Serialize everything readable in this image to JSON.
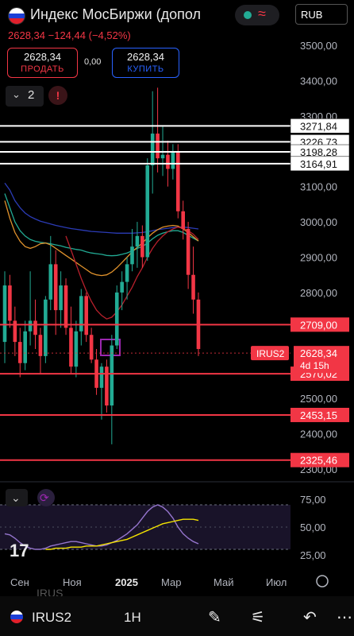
{
  "header": {
    "title": "Индекс МосБиржи (допол",
    "currency": "RUB",
    "last_price": "2628,34",
    "change": "−124,44",
    "change_pct": "(−4,52%)",
    "sell_price": "2628,34",
    "sell_label": "ПРОДАТЬ",
    "buy_price": "2628,34",
    "buy_label": "КУПИТЬ",
    "spread": "0,00",
    "indicator_count": "2",
    "warning_icon": "!"
  },
  "colors": {
    "up": "#22ab94",
    "down": "#f23645",
    "accent": "#2962ff",
    "background": "#000000"
  },
  "chart_data": {
    "type": "candlestick",
    "symbol": "IRUS2",
    "timeframe": "1H",
    "y_ticks": [
      "3500,00",
      "3400,00",
      "3300,00",
      "3100,00",
      "3000,00",
      "2900,00",
      "2800,00",
      "2500,00",
      "2400,00",
      "2300,00"
    ],
    "x_ticks": [
      "Сен",
      "Ноя",
      "2025",
      "Мар",
      "Май",
      "Июл"
    ],
    "ylim": [
      2300,
      3550
    ],
    "candles": [
      [
        2660,
        2860,
        2600,
        2820
      ],
      [
        2820,
        2850,
        2700,
        2720
      ],
      [
        2720,
        2760,
        2620,
        2660
      ],
      [
        2660,
        2700,
        2560,
        2600
      ],
      [
        2600,
        2720,
        2580,
        2690
      ],
      [
        2690,
        2860,
        2650,
        2720
      ],
      [
        2720,
        2780,
        2640,
        2680
      ],
      [
        2680,
        2700,
        2570,
        2620
      ],
      [
        2620,
        2790,
        2600,
        2780
      ],
      [
        2780,
        2960,
        2750,
        2880
      ],
      [
        2880,
        2920,
        2680,
        2750
      ],
      [
        2750,
        2860,
        2700,
        2820
      ],
      [
        2820,
        2840,
        2680,
        2700
      ],
      [
        2700,
        2760,
        2570,
        2590
      ],
      [
        2590,
        2720,
        2560,
        2690
      ],
      [
        2690,
        2810,
        2650,
        2790
      ],
      [
        2790,
        2800,
        2660,
        2680
      ],
      [
        2680,
        2700,
        2600,
        2610
      ],
      [
        2610,
        2640,
        2510,
        2530
      ],
      [
        2530,
        2600,
        2440,
        2590
      ],
      [
        2590,
        2610,
        2460,
        2480
      ],
      [
        2480,
        2680,
        2370,
        2650
      ],
      [
        2650,
        2820,
        2640,
        2800
      ],
      [
        2800,
        2860,
        2750,
        2830
      ],
      [
        2830,
        2900,
        2780,
        2880
      ],
      [
        2880,
        2980,
        2860,
        2930
      ],
      [
        2930,
        3000,
        2870,
        2960
      ],
      [
        2960,
        2990,
        2870,
        2900
      ],
      [
        2900,
        3180,
        2890,
        3160
      ],
      [
        3160,
        3370,
        3080,
        3250
      ],
      [
        3250,
        3380,
        3140,
        3180
      ],
      [
        3180,
        3270,
        3130,
        3190
      ],
      [
        3190,
        3230,
        3100,
        3150
      ],
      [
        3150,
        3220,
        3120,
        3200
      ],
      [
        3200,
        3220,
        3010,
        3030
      ],
      [
        3030,
        3060,
        2950,
        2980
      ],
      [
        2980,
        3000,
        2810,
        2850
      ],
      [
        2850,
        2930,
        2740,
        2780
      ],
      [
        2780,
        2800,
        2620,
        2640
      ]
    ],
    "levels": [
      {
        "value": 3271.84,
        "label": "3271,84",
        "color": "#ffffff"
      },
      {
        "value": 3226.73,
        "label": "3226,73",
        "color": "#ffffff"
      },
      {
        "value": 3198.28,
        "label": "3198,28",
        "color": "#ffffff"
      },
      {
        "value": 3164.91,
        "label": "3164,91",
        "color": "#ffffff"
      },
      {
        "value": 2709.0,
        "label": "2709,00",
        "color": "#f23645"
      },
      {
        "value": 2570.02,
        "label": "2570,02",
        "color": "#f23645"
      },
      {
        "value": 2453.15,
        "label": "2453,15",
        "color": "#f23645"
      },
      {
        "value": 2325.46,
        "label": "2325,46",
        "color": "#f23645"
      }
    ],
    "current_price": {
      "value": 2628.34,
      "label": "2628,34",
      "symbol": "IRUS2",
      "countdown": "4d 15h"
    },
    "moving_averages": [
      {
        "color": "#2b3bb5",
        "values": [
          3110,
          3090,
          3060,
          3040,
          3025,
          3015,
          3008,
          3002,
          2998,
          2994,
          2990,
          2987,
          2984,
          2981,
          2979,
          2977,
          2975,
          2973,
          2972,
          2971,
          2970,
          2969,
          2968,
          2968,
          2968,
          2968,
          2969,
          2970,
          2972,
          2975,
          2978,
          2980,
          2982,
          2984,
          2985,
          2985,
          2984,
          2982,
          2980
        ]
      },
      {
        "color": "#22ab94",
        "values": [
          3080,
          3040,
          3000,
          2975,
          2960,
          2950,
          2945,
          2942,
          2940,
          2938,
          2935,
          2932,
          2928,
          2925,
          2922,
          2920,
          2915,
          2912,
          2910,
          2908,
          2905,
          2904,
          2905,
          2908,
          2912,
          2918,
          2925,
          2930,
          2940,
          2952,
          2962,
          2968,
          2972,
          2975,
          2975,
          2970,
          2962,
          2954,
          2946
        ]
      },
      {
        "color": "#e0922c",
        "values": [
          3060,
          3010,
          2970,
          2945,
          2930,
          2925,
          2930,
          2938,
          2940,
          2935,
          2925,
          2915,
          2905,
          2895,
          2885,
          2875,
          2865,
          2855,
          2850,
          2848,
          2850,
          2858,
          2870,
          2885,
          2900,
          2915,
          2928,
          2940,
          2955,
          2968,
          2978,
          2985,
          2988,
          2990,
          2988,
          2980,
          2970,
          2958,
          2946
        ]
      },
      {
        "color": "#b8202c",
        "values": [
          null,
          null,
          null,
          null,
          null,
          null,
          null,
          null,
          null,
          null,
          null,
          null,
          2960,
          2920,
          2880,
          2840,
          2805,
          2775,
          2750,
          2735,
          2725,
          2730,
          2745,
          2765,
          2790,
          2815,
          2845,
          2870,
          2900,
          2925,
          2945,
          2960,
          2972,
          2980,
          2985,
          2982,
          2975,
          2965,
          2950
        ]
      }
    ],
    "oscillator": {
      "y_ticks": [
        "75,00",
        "50,00",
        "25,00"
      ],
      "ylim": [
        20,
        80
      ],
      "k": [
        44,
        43,
        40,
        36,
        33,
        31,
        30,
        30,
        31,
        33,
        34,
        35,
        36,
        37,
        37,
        36,
        35,
        34,
        33,
        33,
        34,
        36,
        38,
        41,
        44,
        48,
        52,
        58,
        64,
        68,
        70,
        68,
        64,
        58,
        50,
        44,
        40,
        37,
        35
      ],
      "d": [
        null,
        null,
        null,
        null,
        null,
        null,
        null,
        null,
        30,
        30,
        31,
        31,
        31,
        32,
        32,
        32,
        33,
        33,
        33,
        34,
        35,
        36,
        37,
        38,
        39,
        41,
        43,
        45,
        47,
        49,
        51,
        53,
        54,
        55,
        56,
        57,
        57,
        57,
        56
      ]
    }
  },
  "toolbar": {
    "symbol": "IRUS2",
    "timeframe": "1H"
  },
  "ghost_text": "IRUS"
}
